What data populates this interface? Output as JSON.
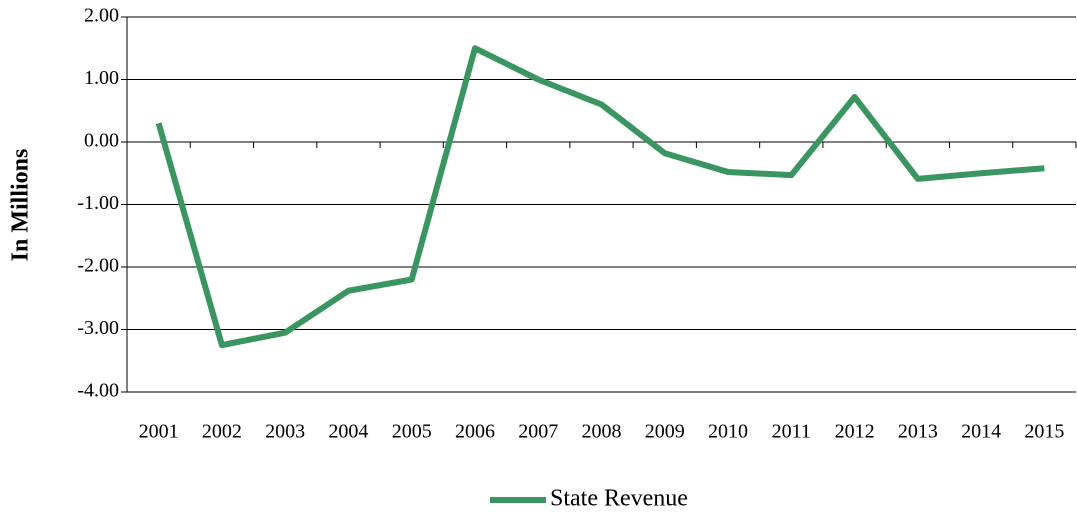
{
  "chart_data": {
    "type": "line",
    "y_label": "In Millions",
    "categories": [
      "2001",
      "2002",
      "2003",
      "2004",
      "2005",
      "2006",
      "2007",
      "2008",
      "2009",
      "2010",
      "2011",
      "2012",
      "2013",
      "2014",
      "2015"
    ],
    "series": [
      {
        "name": "State Revenue",
        "color": "#3a9560",
        "values": [
          0.3,
          -3.25,
          -3.05,
          -2.38,
          -2.2,
          1.5,
          1.0,
          0.6,
          -0.18,
          -0.48,
          -0.53,
          0.72,
          -0.59,
          -0.5,
          -0.42
        ]
      }
    ],
    "ylim": [
      -4,
      2
    ],
    "yticks": [
      {
        "value": -4,
        "label": "-4.00"
      },
      {
        "value": -3,
        "label": "-3.00"
      },
      {
        "value": -2,
        "label": "-2.00"
      },
      {
        "value": -1,
        "label": "-1.00"
      },
      {
        "value": 0,
        "label": "0.00"
      },
      {
        "value": 1,
        "label": "1.00"
      },
      {
        "value": 2,
        "label": "2.00"
      }
    ],
    "grid": true,
    "legend": "bottom"
  }
}
